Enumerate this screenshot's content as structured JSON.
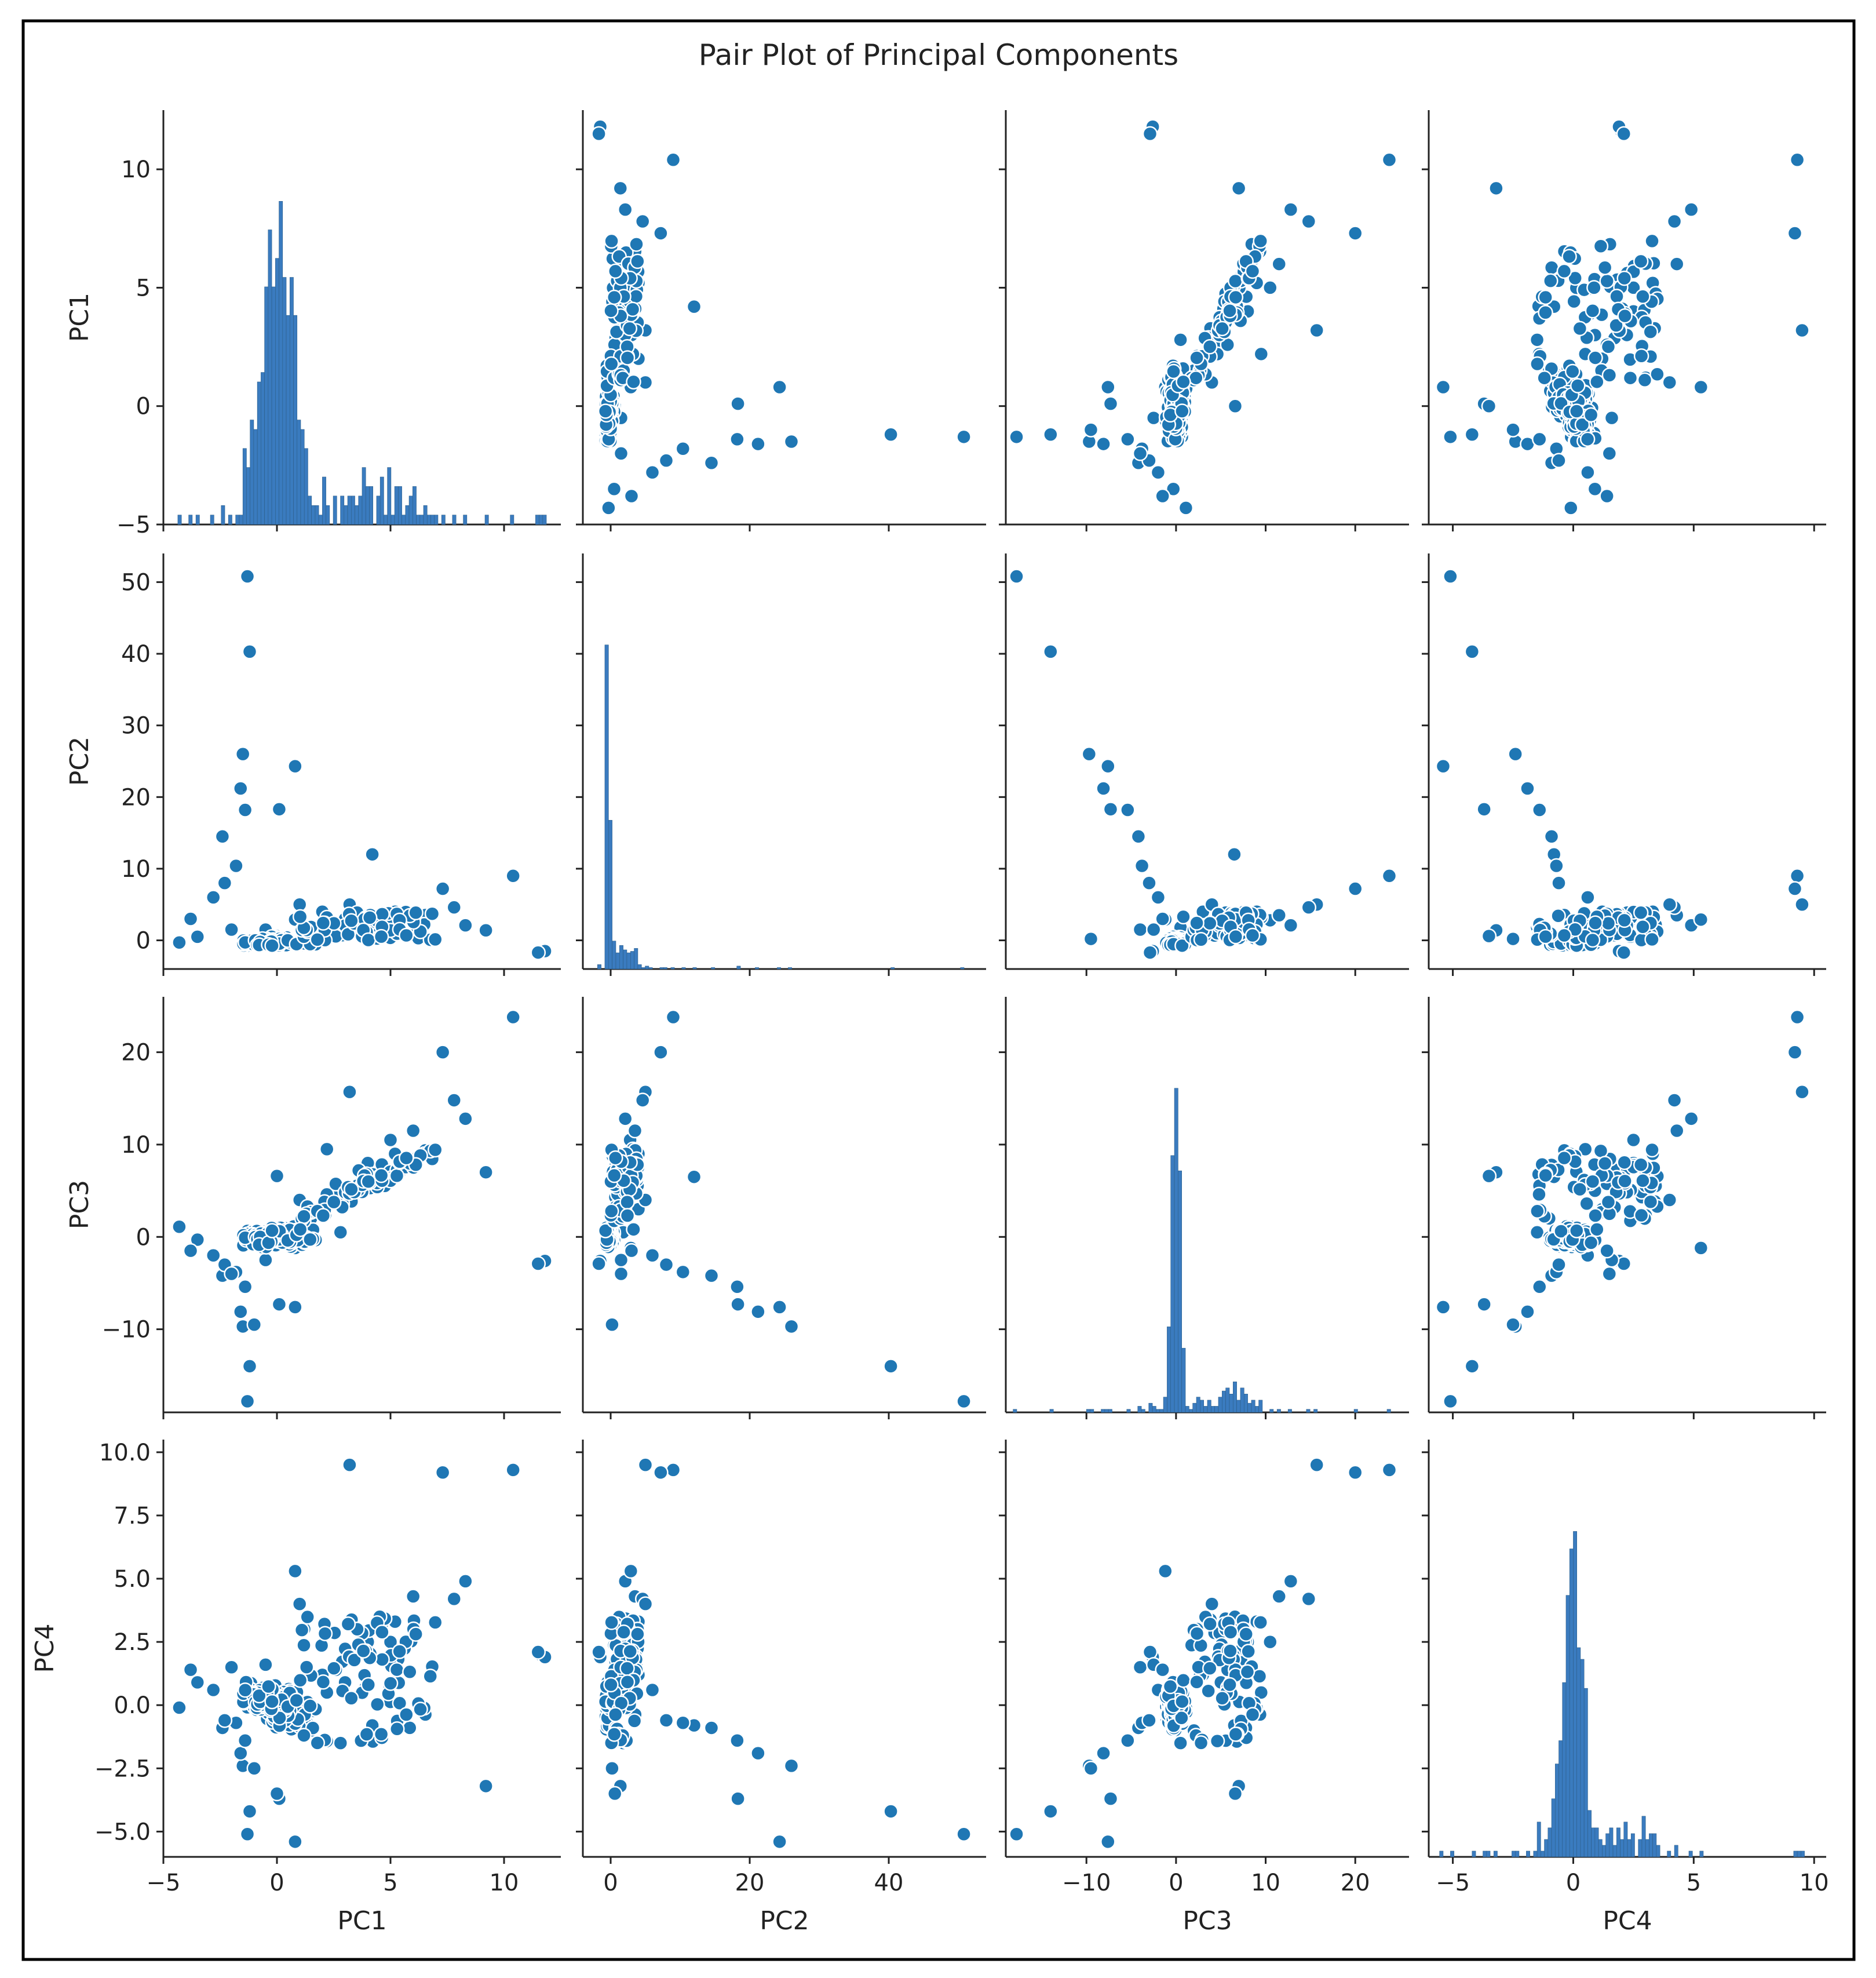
{
  "colors": {
    "point": "#1f77b4",
    "bar": "#3a7bbf",
    "frame": "#000000",
    "axis": "#222222"
  },
  "chart_data": {
    "type": "scatter",
    "title": "Pair Plot of Principal Components",
    "variables": [
      "PC1",
      "PC2",
      "PC3",
      "PC4"
    ],
    "axes": {
      "PC1": {
        "range": [
          -5,
          12.5
        ],
        "ticks": [
          -5,
          0,
          5,
          10
        ],
        "tick_labels": [
          "−5",
          "0",
          "5",
          "10"
        ]
      },
      "PC2": {
        "range": [
          -4,
          54
        ],
        "ticks": [
          0,
          10,
          20,
          30,
          40,
          50
        ],
        "ticks_x": [
          0,
          20,
          40
        ],
        "tick_labels_x": [
          "0",
          "20",
          "40"
        ],
        "tick_labels_y": [
          "0",
          "10",
          "20",
          "30",
          "40",
          "50"
        ]
      },
      "PC3": {
        "range": [
          -19,
          26
        ],
        "ticks": [
          -10,
          0,
          10,
          20
        ],
        "tick_labels": [
          "−10",
          "0",
          "10",
          "20"
        ]
      },
      "PC4": {
        "range": [
          -6,
          10.5
        ],
        "ticks_x": [
          -5,
          0,
          5,
          10
        ],
        "tick_labels_x": [
          "−5",
          "0",
          "5",
          "10"
        ],
        "ticks_y": [
          -5,
          -2.5,
          0,
          2.5,
          5,
          7.5,
          10
        ],
        "tick_labels_y": [
          "−5.0",
          "−2.5",
          "0.0",
          "2.5",
          "5.0",
          "7.5",
          "10.0"
        ]
      }
    },
    "observations": {
      "columns": [
        "PC1",
        "PC2",
        "PC3",
        "PC4"
      ],
      "rows": [
        [
          10.4,
          9.0,
          23.8,
          9.3
        ],
        [
          7.3,
          7.2,
          20.0,
          9.2
        ],
        [
          3.2,
          5.0,
          15.7,
          9.5
        ],
        [
          -1.3,
          50.8,
          -17.8,
          -5.1
        ],
        [
          -1.2,
          40.3,
          -14.0,
          -4.2
        ],
        [
          -1.5,
          26.0,
          -9.7,
          -2.4
        ],
        [
          0.8,
          24.3,
          -7.6,
          -5.4
        ],
        [
          0.1,
          18.3,
          -7.3,
          -3.7
        ],
        [
          -1.6,
          21.2,
          -8.1,
          -1.9
        ],
        [
          -1.4,
          18.2,
          -5.4,
          -1.4
        ],
        [
          4.2,
          12.0,
          6.5,
          -0.8
        ],
        [
          -2.4,
          14.5,
          -4.2,
          -0.9
        ],
        [
          -1.8,
          10.4,
          -3.8,
          -0.7
        ],
        [
          -2.3,
          8.0,
          -3.0,
          -0.6
        ],
        [
          5.0,
          2.8,
          10.5,
          2.5
        ],
        [
          6.0,
          3.5,
          11.5,
          4.3
        ],
        [
          8.3,
          2.1,
          12.8,
          4.9
        ],
        [
          9.2,
          1.4,
          7.0,
          -3.2
        ],
        [
          7.8,
          4.6,
          14.8,
          4.2
        ],
        [
          11.6,
          -1.6,
          -2.8,
          2.0
        ],
        [
          11.8,
          -1.5,
          -2.6,
          1.9
        ],
        [
          11.5,
          -1.7,
          -2.9,
          2.1
        ],
        [
          -4.3,
          -0.3,
          1.1,
          -0.1
        ],
        [
          -3.5,
          0.5,
          -0.3,
          0.9
        ],
        [
          -2.0,
          1.5,
          -4.0,
          1.5
        ],
        [
          -1.0,
          0.2,
          -9.5,
          -2.5
        ],
        [
          0.0,
          0.6,
          6.6,
          -3.5
        ],
        [
          0.8,
          2.9,
          -1.2,
          5.3
        ],
        [
          2.0,
          4.0,
          3.0,
          1.2
        ],
        [
          3.0,
          3.0,
          5.0,
          0.9
        ],
        [
          4.0,
          2.5,
          8.0,
          2.5
        ],
        [
          5.2,
          4.0,
          9.0,
          3.3
        ],
        [
          -0.5,
          1.5,
          -2.5,
          1.6
        ],
        [
          1.5,
          1.0,
          2.0,
          -1.0
        ],
        [
          2.8,
          1.8,
          0.5,
          -1.5
        ],
        [
          3.6,
          2.2,
          7.2,
          3.0
        ],
        [
          -2.8,
          6.0,
          -2.0,
          0.6
        ],
        [
          -3.8,
          3.0,
          -1.5,
          1.4
        ],
        [
          1.0,
          5.0,
          4.0,
          4.0
        ],
        [
          2.2,
          3.2,
          9.5,
          0.5
        ]
      ],
      "note": "representative sample of the displayed cloud"
    }
  }
}
